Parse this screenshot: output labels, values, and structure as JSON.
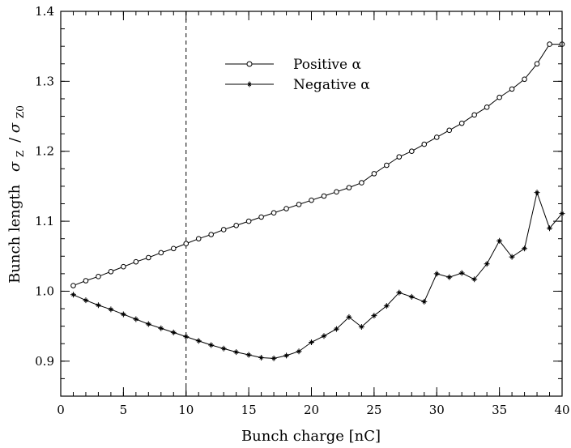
{
  "chart_data": {
    "type": "line",
    "xlabel": "Bunch charge [nC]",
    "ylabel_prefix": "Bunch length",
    "ylabel_math": {
      "num_symbol": "σ",
      "num_sub": "Z",
      "sep": "/",
      "den_symbol": "σ",
      "den_sub": "Z0"
    },
    "xlim": [
      0,
      40
    ],
    "ylim": [
      0.85,
      1.4
    ],
    "xticks": [
      0,
      5,
      10,
      15,
      20,
      25,
      30,
      35,
      40
    ],
    "xtick_labels": [
      "0",
      "5",
      "10",
      "15",
      "20",
      "25",
      "30",
      "35",
      "40"
    ],
    "yticks": [
      0.9,
      1.0,
      1.1,
      1.2,
      1.3,
      1.4
    ],
    "ytick_labels": [
      "0.9",
      "1.0",
      "1.1",
      "1.2",
      "1.3",
      "1.4"
    ],
    "x_minor_step": 1,
    "y_minor_step": 0.025,
    "vline_x": 10,
    "legend_position": "top-center",
    "series": [
      {
        "name": "Positive α",
        "marker": "circle",
        "x": [
          1,
          2,
          3,
          4,
          5,
          6,
          7,
          8,
          9,
          10,
          11,
          12,
          13,
          14,
          15,
          16,
          17,
          18,
          19,
          20,
          21,
          22,
          23,
          24,
          25,
          26,
          27,
          28,
          29,
          30,
          31,
          32,
          33,
          34,
          35,
          36,
          37,
          38,
          39,
          40
        ],
        "values": [
          1.008,
          1.015,
          1.021,
          1.028,
          1.035,
          1.042,
          1.048,
          1.055,
          1.061,
          1.068,
          1.075,
          1.081,
          1.088,
          1.094,
          1.1,
          1.106,
          1.112,
          1.118,
          1.124,
          1.13,
          1.136,
          1.142,
          1.148,
          1.155,
          1.168,
          1.18,
          1.192,
          1.2,
          1.21,
          1.22,
          1.23,
          1.24,
          1.252,
          1.263,
          1.277,
          1.289,
          1.303,
          1.325,
          1.353,
          1.353
        ]
      },
      {
        "name": "Negative α",
        "marker": "star",
        "x": [
          1,
          2,
          3,
          4,
          5,
          6,
          7,
          8,
          9,
          10,
          11,
          12,
          13,
          14,
          15,
          16,
          17,
          18,
          19,
          20,
          21,
          22,
          23,
          24,
          25,
          26,
          27,
          28,
          29,
          30,
          31,
          32,
          33,
          34,
          35,
          36,
          37,
          38,
          39,
          40
        ],
        "values": [
          0.995,
          0.987,
          0.98,
          0.974,
          0.967,
          0.96,
          0.953,
          0.947,
          0.941,
          0.935,
          0.929,
          0.923,
          0.918,
          0.913,
          0.909,
          0.905,
          0.904,
          0.908,
          0.914,
          0.927,
          0.936,
          0.946,
          0.963,
          0.949,
          0.965,
          0.979,
          0.998,
          0.992,
          0.985,
          1.025,
          1.02,
          1.026,
          1.017,
          1.039,
          1.072,
          1.049,
          1.061,
          1.141,
          1.09,
          1.111
        ]
      }
    ]
  }
}
